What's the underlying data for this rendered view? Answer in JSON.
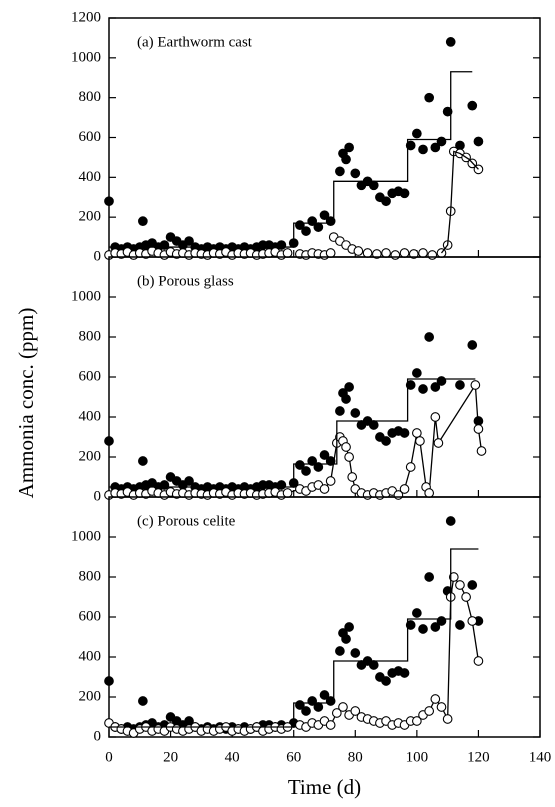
{
  "chart_data": [
    {
      "type": "scatter",
      "title": "(a) Earthworm cast",
      "ylabel": "Ammonia conc. (ppm)",
      "xlim": [
        0,
        140
      ],
      "xticks": [
        0,
        20,
        40,
        60,
        80,
        100,
        120,
        140
      ],
      "ylim": [
        0,
        1200
      ],
      "yticks": [
        0,
        200,
        400,
        600,
        800,
        1000,
        1200
      ],
      "series": [
        {
          "style": "filled",
          "color": "#000000",
          "x": [
            0,
            2,
            4,
            6,
            8,
            10,
            11,
            12,
            14,
            16,
            18,
            20,
            22,
            24,
            26,
            28,
            30,
            32,
            34,
            36,
            38,
            40,
            42,
            44,
            46,
            48,
            50,
            52,
            54,
            56,
            60,
            62,
            64,
            66,
            68,
            70,
            72,
            75,
            76,
            77,
            78,
            80,
            82,
            84,
            86,
            88,
            90,
            92,
            94,
            96,
            98,
            100,
            102,
            104,
            106,
            108,
            110,
            111,
            114,
            118,
            120
          ],
          "values": [
            280,
            50,
            40,
            50,
            40,
            50,
            180,
            60,
            70,
            50,
            60,
            100,
            80,
            60,
            80,
            50,
            40,
            50,
            40,
            50,
            40,
            50,
            40,
            50,
            40,
            50,
            60,
            60,
            50,
            60,
            70,
            160,
            130,
            180,
            150,
            210,
            180,
            430,
            520,
            490,
            550,
            420,
            360,
            380,
            360,
            300,
            280,
            320,
            330,
            320,
            560,
            620,
            540,
            800,
            550,
            580,
            730,
            1080,
            560,
            760,
            580
          ]
        },
        {
          "style": "open",
          "color": "#000000",
          "x": [
            0,
            2,
            4,
            6,
            8,
            10,
            12,
            14,
            16,
            18,
            20,
            22,
            24,
            26,
            28,
            30,
            32,
            34,
            36,
            38,
            40,
            42,
            44,
            46,
            48,
            50,
            52,
            54,
            56,
            58,
            62,
            64,
            66,
            68,
            70,
            72,
            73,
            75,
            77,
            79,
            81,
            84,
            87,
            90,
            93,
            96,
            99,
            102,
            105,
            108,
            110,
            111,
            112,
            114,
            116,
            118,
            120
          ],
          "values": [
            10,
            20,
            15,
            25,
            10,
            20,
            15,
            30,
            20,
            10,
            25,
            15,
            20,
            10,
            20,
            15,
            10,
            20,
            15,
            25,
            10,
            20,
            15,
            20,
            10,
            15,
            20,
            25,
            10,
            20,
            15,
            10,
            20,
            15,
            10,
            20,
            100,
            80,
            60,
            40,
            30,
            20,
            15,
            20,
            10,
            20,
            15,
            20,
            10,
            20,
            60,
            230,
            530,
            520,
            500,
            470,
            440
          ]
        },
        {
          "style": "line",
          "color": "#000000",
          "x": [
            108,
            110,
            111,
            112,
            114,
            117,
            120
          ],
          "values": [
            20,
            60,
            230,
            530,
            520,
            490,
            440
          ]
        },
        {
          "style": "step",
          "color": "#000000",
          "x": [
            0,
            60,
            60,
            73,
            73,
            97,
            97,
            111,
            111,
            118
          ],
          "values": [
            50,
            50,
            170,
            170,
            380,
            380,
            590,
            590,
            930,
            930
          ]
        }
      ]
    },
    {
      "type": "scatter",
      "title": "(b) Porous glass",
      "xlim": [
        0,
        140
      ],
      "xticks": [
        0,
        20,
        40,
        60,
        80,
        100,
        120,
        140
      ],
      "ylim": [
        0,
        1200
      ],
      "yticks": [
        0,
        200,
        400,
        600,
        800,
        1000
      ],
      "series": [
        {
          "style": "filled",
          "color": "#000000",
          "x": [
            0,
            2,
            4,
            6,
            8,
            10,
            11,
            12,
            14,
            16,
            18,
            20,
            22,
            24,
            26,
            28,
            30,
            32,
            34,
            36,
            38,
            40,
            42,
            44,
            46,
            48,
            50,
            52,
            54,
            56,
            60,
            62,
            64,
            66,
            68,
            70,
            72,
            75,
            76,
            77,
            78,
            80,
            82,
            84,
            86,
            88,
            90,
            92,
            94,
            96,
            98,
            100,
            102,
            104,
            106,
            108,
            114,
            118,
            120
          ],
          "values": [
            280,
            50,
            40,
            50,
            40,
            50,
            180,
            60,
            70,
            50,
            60,
            100,
            80,
            60,
            80,
            50,
            40,
            50,
            40,
            50,
            40,
            50,
            40,
            50,
            40,
            50,
            60,
            60,
            50,
            60,
            70,
            160,
            130,
            180,
            150,
            210,
            180,
            430,
            520,
            490,
            550,
            420,
            360,
            380,
            360,
            300,
            280,
            320,
            330,
            320,
            560,
            620,
            540,
            800,
            550,
            580,
            560,
            760,
            380
          ]
        },
        {
          "style": "open-line",
          "color": "#000000",
          "x": [
            0,
            2,
            4,
            6,
            8,
            10,
            12,
            14,
            16,
            18,
            20,
            22,
            24,
            26,
            28,
            30,
            32,
            34,
            36,
            38,
            40,
            42,
            44,
            46,
            48,
            50,
            52,
            54,
            56,
            58,
            62,
            64,
            66,
            68,
            70,
            72,
            74,
            75,
            76,
            77,
            78,
            79,
            80,
            82,
            84,
            86,
            88,
            90,
            92,
            94,
            96,
            98,
            100,
            101,
            103,
            104,
            106,
            107,
            119,
            120,
            121
          ],
          "values": [
            10,
            20,
            15,
            25,
            10,
            20,
            15,
            30,
            20,
            10,
            25,
            15,
            20,
            10,
            20,
            15,
            10,
            20,
            15,
            25,
            10,
            20,
            15,
            20,
            10,
            15,
            20,
            25,
            10,
            20,
            40,
            30,
            50,
            60,
            40,
            80,
            270,
            300,
            280,
            250,
            200,
            100,
            40,
            20,
            10,
            20,
            10,
            20,
            30,
            10,
            40,
            150,
            320,
            280,
            50,
            20,
            400,
            270,
            560,
            340,
            230
          ]
        },
        {
          "style": "step",
          "color": "#000000",
          "x": [
            0,
            60,
            60,
            74,
            74,
            97,
            97,
            119
          ],
          "values": [
            50,
            50,
            165,
            165,
            380,
            380,
            590,
            590
          ]
        }
      ]
    },
    {
      "type": "scatter",
      "title": "(c) Porous celite",
      "xlabel": "Time (d)",
      "xlim": [
        0,
        140
      ],
      "xticks": [
        0,
        20,
        40,
        60,
        80,
        100,
        120,
        140
      ],
      "ylim": [
        0,
        1200
      ],
      "yticks": [
        0,
        200,
        400,
        600,
        800,
        1000
      ],
      "series": [
        {
          "style": "filled",
          "color": "#000000",
          "x": [
            0,
            2,
            4,
            6,
            8,
            10,
            11,
            12,
            14,
            16,
            18,
            20,
            22,
            24,
            26,
            28,
            30,
            32,
            34,
            36,
            38,
            40,
            42,
            44,
            46,
            48,
            50,
            52,
            54,
            56,
            60,
            62,
            64,
            66,
            68,
            70,
            72,
            75,
            76,
            77,
            78,
            80,
            82,
            84,
            86,
            88,
            90,
            92,
            94,
            96,
            98,
            100,
            102,
            104,
            106,
            108,
            110,
            111,
            114,
            118,
            120
          ],
          "values": [
            280,
            50,
            40,
            50,
            40,
            50,
            180,
            60,
            70,
            50,
            60,
            100,
            80,
            60,
            80,
            50,
            40,
            50,
            40,
            50,
            40,
            50,
            40,
            50,
            40,
            50,
            60,
            60,
            50,
            60,
            70,
            160,
            130,
            180,
            150,
            210,
            180,
            430,
            520,
            490,
            550,
            420,
            360,
            380,
            360,
            300,
            280,
            320,
            330,
            320,
            560,
            620,
            540,
            800,
            550,
            580,
            730,
            1080,
            560,
            760,
            580
          ]
        },
        {
          "style": "open-line",
          "color": "#000000",
          "x": [
            0,
            2,
            4,
            6,
            8,
            10,
            12,
            14,
            16,
            18,
            20,
            22,
            24,
            26,
            28,
            30,
            32,
            34,
            36,
            38,
            40,
            42,
            44,
            46,
            48,
            50,
            52,
            54,
            56,
            58,
            62,
            64,
            66,
            68,
            70,
            72,
            74,
            76,
            78,
            80,
            82,
            84,
            86,
            88,
            90,
            92,
            94,
            96,
            98,
            100,
            102,
            104,
            106,
            108,
            110,
            111,
            112,
            114,
            116,
            118,
            120
          ],
          "values": [
            70,
            50,
            40,
            30,
            20,
            40,
            50,
            30,
            40,
            30,
            50,
            40,
            30,
            40,
            50,
            30,
            40,
            30,
            40,
            50,
            30,
            40,
            30,
            40,
            50,
            30,
            40,
            50,
            40,
            50,
            60,
            50,
            70,
            60,
            80,
            60,
            120,
            150,
            110,
            130,
            100,
            90,
            80,
            70,
            80,
            60,
            70,
            60,
            80,
            80,
            110,
            130,
            190,
            150,
            90,
            700,
            800,
            760,
            700,
            580,
            380
          ]
        },
        {
          "style": "step",
          "color": "#000000",
          "x": [
            0,
            60,
            60,
            73,
            73,
            97,
            97,
            111,
            111,
            120
          ],
          "values": [
            50,
            50,
            170,
            170,
            380,
            380,
            590,
            590,
            940,
            940
          ]
        }
      ]
    }
  ]
}
